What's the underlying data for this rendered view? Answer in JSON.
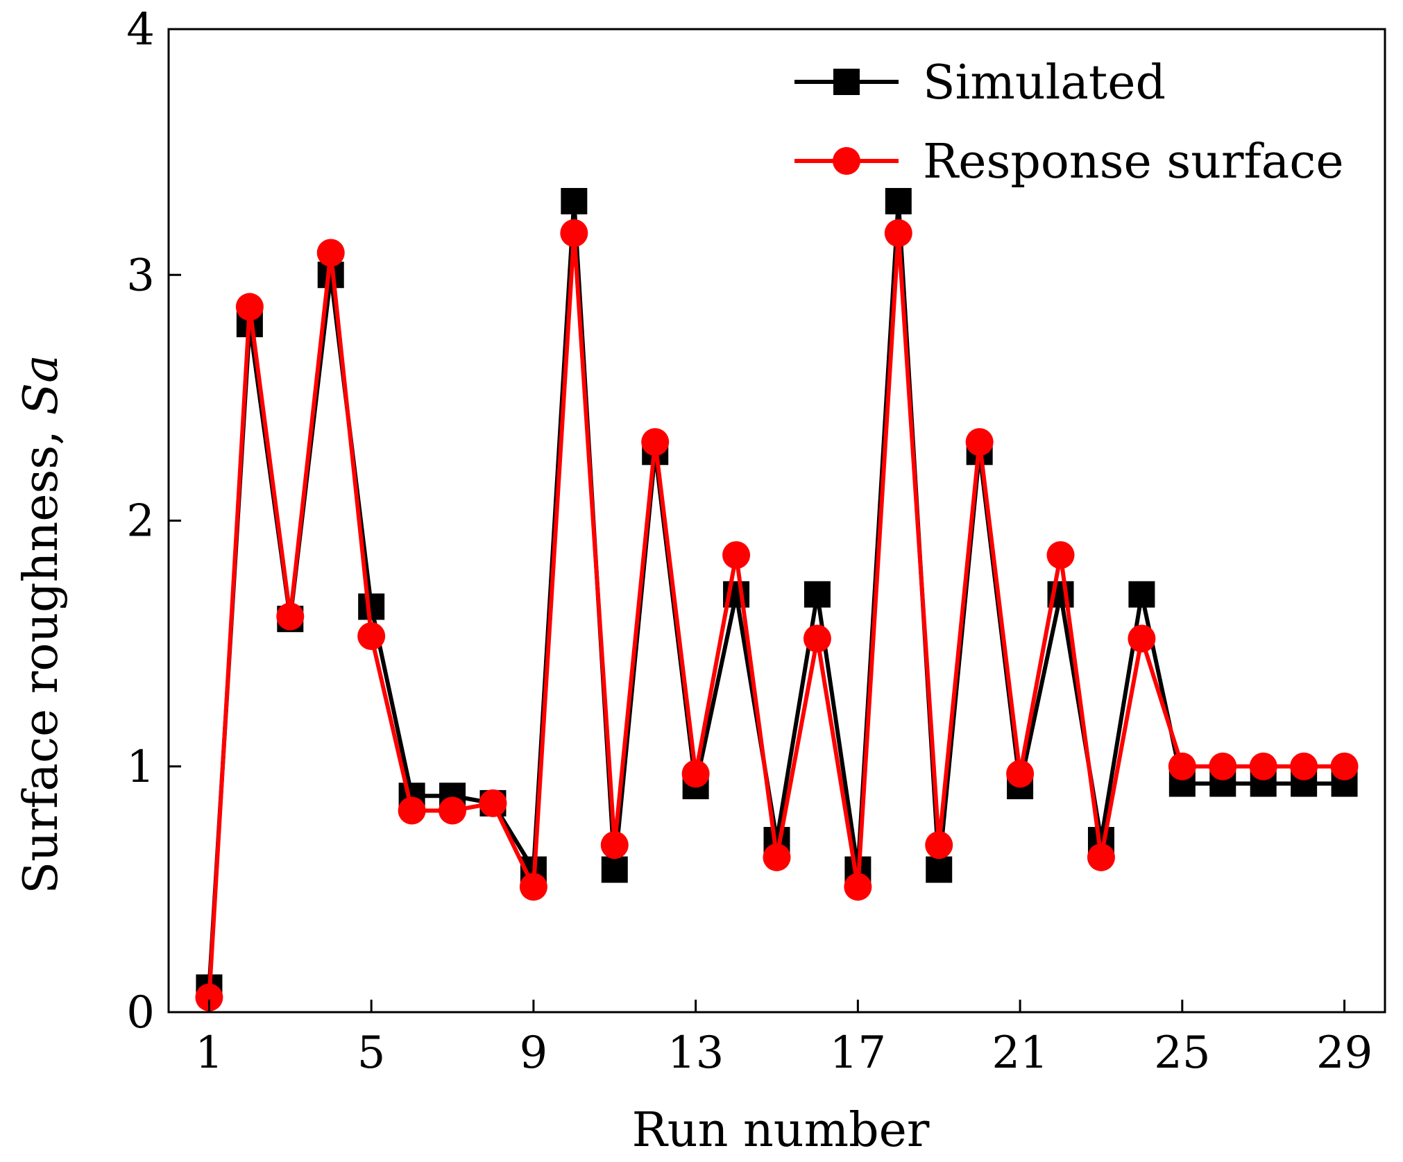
{
  "chart_data": {
    "type": "line",
    "title": "",
    "xlabel": "Run number",
    "ylabel_main": "Surface roughness, ",
    "ylabel_symbol": "Sa",
    "xlim": [
      0,
      30
    ],
    "ylim": [
      0,
      4
    ],
    "xticks": [
      1,
      5,
      9,
      13,
      17,
      21,
      25,
      29
    ],
    "xtick_labels": [
      "1",
      "5",
      "9",
      "13",
      "17",
      "21",
      "25",
      "29"
    ],
    "yticks": [
      0,
      1,
      2,
      3,
      4
    ],
    "ytick_labels": [
      "0",
      "1",
      "2",
      "3",
      "4"
    ],
    "legend_position": "top-right",
    "x": [
      1,
      2,
      3,
      4,
      5,
      6,
      7,
      8,
      9,
      10,
      11,
      12,
      13,
      14,
      15,
      16,
      17,
      18,
      19,
      20,
      21,
      22,
      23,
      24,
      25,
      26,
      27,
      28,
      29
    ],
    "series": [
      {
        "name": "Simulated",
        "color": "#000000",
        "marker": "square",
        "values": [
          0.1,
          2.8,
          1.6,
          3.0,
          1.65,
          0.88,
          0.88,
          0.85,
          0.58,
          3.3,
          0.58,
          2.28,
          0.92,
          1.7,
          0.7,
          1.7,
          0.58,
          3.3,
          0.58,
          2.28,
          0.92,
          1.7,
          0.7,
          1.7,
          0.93,
          0.93,
          0.93,
          0.93,
          0.93
        ]
      },
      {
        "name": "Response surface",
        "color": "#ff0000",
        "marker": "circle",
        "values": [
          0.06,
          2.87,
          1.61,
          3.09,
          1.53,
          0.82,
          0.82,
          0.85,
          0.51,
          3.17,
          0.68,
          2.32,
          0.97,
          1.86,
          0.63,
          1.52,
          0.51,
          3.17,
          0.68,
          2.32,
          0.97,
          1.86,
          0.63,
          1.52,
          1.0,
          1.0,
          1.0,
          1.0,
          1.0
        ]
      }
    ]
  }
}
